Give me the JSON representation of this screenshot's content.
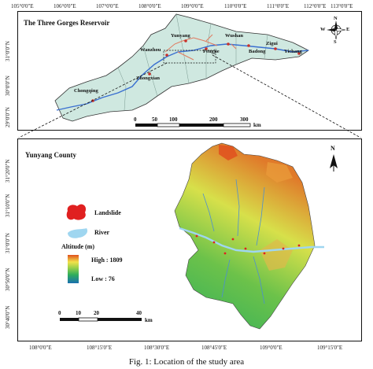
{
  "top_map": {
    "title": "The Three Gorges Reservoir",
    "lon_labels": [
      "105°0'0\"E",
      "106°0'0\"E",
      "107°0'0\"E",
      "108°0'0\"E",
      "109°0'0\"E",
      "110°0'0\"E",
      "111°0'0\"E",
      "112°0'0\"E",
      "113°0'0\"E"
    ],
    "lat_labels": [
      "31°0'0\"N",
      "30°0'0\"N",
      "29°0'0\"N"
    ],
    "cities": [
      "Yunyang",
      "Wushan",
      "Wanzhou",
      "Fengjie",
      "Badong",
      "Zigui",
      "Yichang",
      "Zhongxian",
      "Chongqing"
    ],
    "scale": {
      "ticks": [
        "0",
        "50",
        "100",
        "200",
        "300"
      ],
      "unit": "km"
    },
    "compass": {
      "n": "N",
      "s": "S",
      "e": "E",
      "w": "W"
    },
    "colors": {
      "area": "#cfe8e0",
      "river": "#3a6fd0",
      "route": "#e07a5f"
    }
  },
  "bottom_map": {
    "title": "Yunyang County",
    "lon_labels": [
      "108°0'0\"E",
      "108°15'0\"E",
      "108°30'0\"E",
      "108°45'0\"E",
      "109°0'0\"E",
      "109°15'0\"E"
    ],
    "lat_labels": [
      "31°20'0\"N",
      "31°10'0\"N",
      "31°0'0\"N",
      "30°50'0\"N",
      "30°40'0\"N"
    ],
    "north": "N",
    "legend": {
      "landslide": "Landslide",
      "river": "River",
      "altitude_title": "Altitude (m)",
      "high": "High : 1809",
      "low": "Low : 76",
      "colors": {
        "landslide": "#e02020",
        "river": "#9fd6f0",
        "high": "#e0501e",
        "mid": "#f2e24a",
        "low": "#1a6fb0"
      }
    },
    "scale": {
      "ticks": [
        "0",
        "10",
        "20",
        "40"
      ],
      "unit": "km"
    }
  },
  "caption": "Fig. 1: Location of the study area"
}
